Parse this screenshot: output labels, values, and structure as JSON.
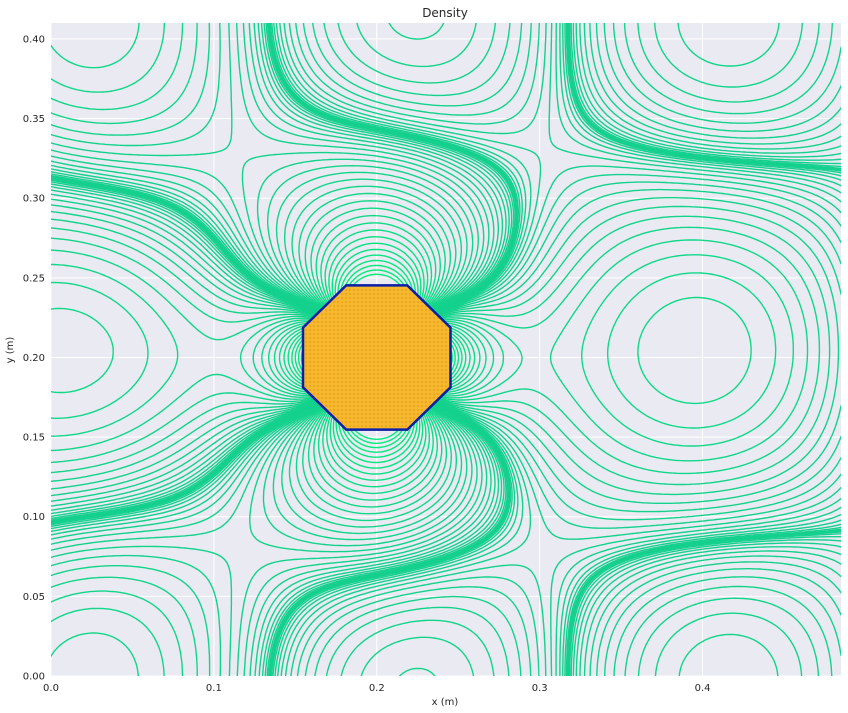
{
  "chart_data": {
    "type": "contour",
    "title": "Density",
    "xlabel": "x (m)",
    "ylabel": "y (m)",
    "xlim": [
      0.0,
      0.485
    ],
    "ylim": [
      0.0,
      0.41
    ],
    "x_ticks": [
      0.0,
      0.1,
      0.2,
      0.3,
      0.4
    ],
    "x_tick_labels": [
      "0.0",
      "0.1",
      "0.2",
      "0.3",
      "0.4"
    ],
    "y_ticks": [
      0.0,
      0.05,
      0.1,
      0.15,
      0.2,
      0.25,
      0.3,
      0.35,
      0.4
    ],
    "y_tick_labels": [
      "0.00",
      "0.05",
      "0.10",
      "0.15",
      "0.20",
      "0.25",
      "0.30",
      "0.35",
      "0.40"
    ],
    "grid": true,
    "obstacle": {
      "shape": "octagon",
      "center": [
        0.2,
        0.2
      ],
      "radius": 0.049
    },
    "colors": {
      "background": "#eaeaf2",
      "grid": "#ffffff",
      "contour_outer": "#15d08e",
      "contour_inner": "#00f07a",
      "obstacle_fill": "#f5b82e",
      "obstacle_dots": "#e89a10",
      "obstacle_edge": "#0b1ea8"
    }
  }
}
